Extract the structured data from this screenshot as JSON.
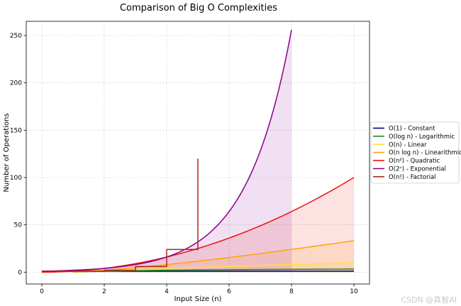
{
  "chart_data": {
    "type": "line",
    "title": "Comparison of Big O Complexities",
    "xlabel": "Input Size (n)",
    "ylabel": "Number of Operations",
    "xlim": [
      -0.5,
      10.5
    ],
    "ylim": [
      -12.5,
      265
    ],
    "xticks": [
      0,
      2,
      4,
      6,
      8,
      10
    ],
    "yticks": [
      0,
      50,
      100,
      150,
      200,
      250
    ],
    "grid": true,
    "legend_position": "right",
    "series": [
      {
        "name": "O(1) - Constant",
        "color": "#00008b",
        "fill": false,
        "func": "constant",
        "x": [
          0,
          10
        ],
        "y": [
          1,
          1
        ]
      },
      {
        "name": "O(log n) - Logarithmic",
        "color": "#228b22",
        "fill": true,
        "func": "log",
        "x": [
          1,
          2,
          4,
          6,
          8,
          10
        ],
        "y": [
          0,
          1,
          2,
          2.58,
          3,
          3.32
        ]
      },
      {
        "name": "O(n) - Linear",
        "color": "#ffe23d",
        "fill": true,
        "func": "linear",
        "x": [
          0,
          10
        ],
        "y": [
          0,
          10
        ]
      },
      {
        "name": "O(n log n) - Linearithmic",
        "color": "#ffa500",
        "fill": true,
        "func": "nlogn",
        "x": [
          1,
          2,
          4,
          6,
          8,
          10
        ],
        "y": [
          0,
          2,
          8,
          15.5,
          24,
          33.2
        ]
      },
      {
        "name": "O(n²) - Quadratic",
        "color": "#ee1111",
        "fill": true,
        "func": "quadratic",
        "x": [
          0,
          2,
          4,
          6,
          8,
          10
        ],
        "y": [
          0,
          4,
          16,
          36,
          64,
          100
        ]
      },
      {
        "name": "O(2ⁿ) - Exponential",
        "color": "#8b008b",
        "fill": true,
        "func": "exponential",
        "x": [
          0,
          2,
          4,
          6,
          8
        ],
        "y": [
          1,
          4,
          16,
          64,
          256
        ]
      },
      {
        "name": "O(n!) - Factorial",
        "color": "#b22222",
        "fill": false,
        "func": "factorial",
        "x": [
          0,
          1,
          2,
          3,
          4,
          5
        ],
        "y": [
          1,
          1,
          2,
          6,
          24,
          120
        ]
      }
    ]
  },
  "watermark": "CSDN @真智AI"
}
